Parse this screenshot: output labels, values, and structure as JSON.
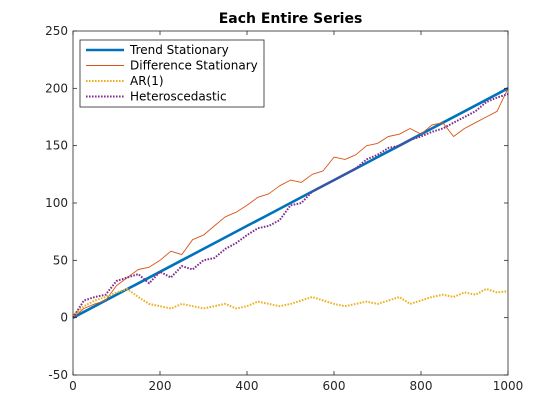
{
  "chart_data": {
    "type": "line",
    "title": "Each Entire Series",
    "xlabel": "",
    "ylabel": "",
    "xlim": [
      0,
      1000
    ],
    "ylim": [
      -50,
      250
    ],
    "x_ticks": [
      0,
      200,
      400,
      600,
      800,
      1000
    ],
    "y_ticks": [
      -50,
      0,
      50,
      100,
      150,
      200,
      250
    ],
    "grid": false,
    "legend": {
      "placement": "top-left",
      "entries": [
        "Trend Stationary",
        "Difference Stationary",
        "AR(1)",
        "Heteroscedastic"
      ]
    },
    "series": [
      {
        "name": "Trend Stationary",
        "color": "#0072BD",
        "style": "solid-thick",
        "x": [
          0,
          50,
          100,
          150,
          200,
          250,
          300,
          350,
          400,
          450,
          500,
          550,
          600,
          650,
          700,
          750,
          800,
          850,
          900,
          950,
          1000
        ],
        "y": [
          0,
          10,
          20,
          30,
          40,
          50,
          60,
          70,
          80,
          90,
          100,
          110,
          120,
          130,
          140,
          150,
          160,
          170,
          180,
          190,
          200
        ]
      },
      {
        "name": "Difference Stationary",
        "color": "#D95319",
        "style": "solid-thin",
        "x": [
          0,
          25,
          50,
          75,
          100,
          125,
          150,
          175,
          200,
          225,
          250,
          275,
          300,
          325,
          350,
          375,
          400,
          425,
          450,
          475,
          500,
          525,
          550,
          575,
          600,
          625,
          650,
          675,
          700,
          725,
          750,
          775,
          800,
          825,
          850,
          875,
          900,
          925,
          950,
          975,
          1000
        ],
        "y": [
          0,
          8,
          12,
          15,
          28,
          35,
          42,
          44,
          50,
          58,
          55,
          68,
          72,
          80,
          88,
          92,
          98,
          105,
          108,
          115,
          120,
          118,
          125,
          128,
          140,
          138,
          142,
          150,
          152,
          158,
          160,
          165,
          160,
          168,
          170,
          158,
          165,
          170,
          175,
          180,
          200
        ]
      },
      {
        "name": "AR(1)",
        "color": "#EDB120",
        "style": "dotted",
        "x": [
          0,
          25,
          50,
          75,
          100,
          125,
          150,
          175,
          200,
          225,
          250,
          275,
          300,
          325,
          350,
          375,
          400,
          425,
          450,
          475,
          500,
          525,
          550,
          575,
          600,
          625,
          650,
          675,
          700,
          725,
          750,
          775,
          800,
          825,
          850,
          875,
          900,
          925,
          950,
          975,
          1000
        ],
        "y": [
          2,
          10,
          15,
          18,
          22,
          25,
          18,
          12,
          10,
          8,
          12,
          10,
          8,
          10,
          12,
          8,
          10,
          14,
          12,
          10,
          12,
          15,
          18,
          15,
          12,
          10,
          12,
          14,
          12,
          15,
          18,
          12,
          15,
          18,
          20,
          18,
          22,
          20,
          25,
          22,
          23
        ]
      },
      {
        "name": "Heteroscedastic",
        "color": "#7E2F8E",
        "style": "dotted",
        "x": [
          0,
          25,
          50,
          75,
          100,
          125,
          150,
          175,
          200,
          225,
          250,
          275,
          300,
          325,
          350,
          375,
          400,
          425,
          450,
          475,
          500,
          525,
          550,
          575,
          600,
          625,
          650,
          675,
          700,
          725,
          750,
          775,
          800,
          825,
          850,
          875,
          900,
          925,
          950,
          975,
          1000
        ],
        "y": [
          0,
          15,
          18,
          20,
          32,
          35,
          38,
          30,
          40,
          35,
          45,
          42,
          50,
          52,
          60,
          65,
          72,
          78,
          80,
          85,
          98,
          100,
          110,
          115,
          120,
          125,
          130,
          138,
          142,
          148,
          150,
          155,
          158,
          162,
          165,
          170,
          175,
          180,
          188,
          192,
          195
        ]
      }
    ]
  }
}
